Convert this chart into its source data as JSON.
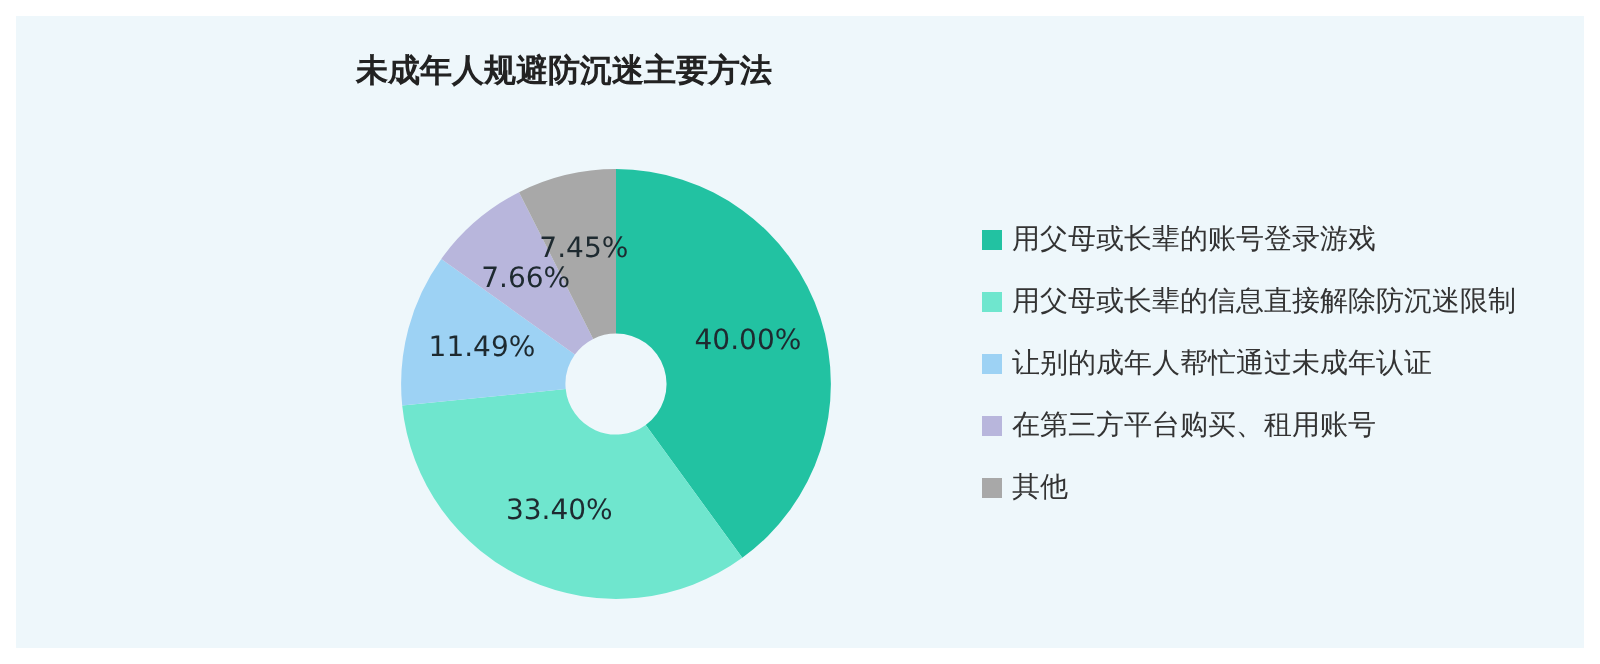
{
  "chart_data": {
    "type": "donut",
    "title": "未成年人规避防沉迷主要方法",
    "categories": [
      "用父母或长辈的账号登录游戏",
      "用父母或长辈的信息直接解除防沉迷限制",
      "让别的成年人帮忙通过未成年认证",
      "在第三方平台购买、租用账号",
      "其他"
    ],
    "values": [
      40.0,
      33.4,
      11.49,
      7.66,
      7.45
    ],
    "value_labels": [
      "40.00%",
      "33.40%",
      "11.49%",
      "7.66%",
      "7.45%"
    ],
    "colors": [
      "#22c2a2",
      "#6fe6ce",
      "#9dd2f4",
      "#b8b6dc",
      "#a8a8a8"
    ],
    "legend": "right"
  }
}
